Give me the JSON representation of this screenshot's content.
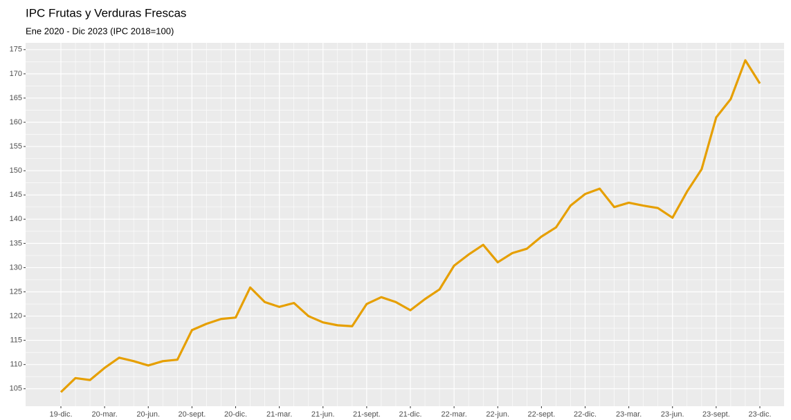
{
  "chart_data": {
    "type": "line",
    "title": "IPC Frutas y Verduras Frescas",
    "subtitle": "Ene 2020 - Dic 2023 (IPC 2018=100)",
    "categories": [
      "19-dic.",
      null,
      null,
      "20-mar.",
      null,
      null,
      "20-jun.",
      null,
      null,
      "20-sept.",
      null,
      null,
      "20-dic.",
      null,
      null,
      "21-mar.",
      null,
      null,
      "21-jun.",
      null,
      null,
      "21-sept.",
      null,
      null,
      "21-dic.",
      null,
      null,
      "22-mar.",
      null,
      null,
      "22-jun.",
      null,
      null,
      "22-sept.",
      null,
      null,
      "22-dic.",
      null,
      null,
      "23-mar.",
      null,
      null,
      "23-jun.",
      null,
      null,
      "23-sept.",
      null,
      null,
      "23-dic."
    ],
    "series": [
      {
        "name": "IPC",
        "color": "#e69f00",
        "values": [
          104.3,
          107.2,
          106.8,
          109.3,
          111.4,
          110.7,
          109.8,
          110.7,
          111.0,
          117.1,
          118.4,
          119.4,
          119.7,
          125.9,
          122.9,
          121.9,
          122.7,
          120.0,
          118.7,
          118.1,
          117.9,
          122.5,
          123.9,
          122.9,
          121.2,
          123.5,
          125.5,
          130.4,
          132.7,
          134.7,
          131.1,
          133.0,
          133.9,
          136.4,
          138.3,
          142.8,
          145.2,
          146.3,
          142.5,
          143.4,
          142.8,
          142.3,
          140.3,
          145.7,
          150.3,
          161.0,
          164.8,
          172.8,
          168.0
        ]
      }
    ],
    "ylim": [
      101.4,
      176.4
    ],
    "yticks": [
      105,
      110,
      115,
      120,
      125,
      130,
      135,
      140,
      145,
      150,
      155,
      160,
      165,
      170,
      175
    ],
    "grid": true
  }
}
